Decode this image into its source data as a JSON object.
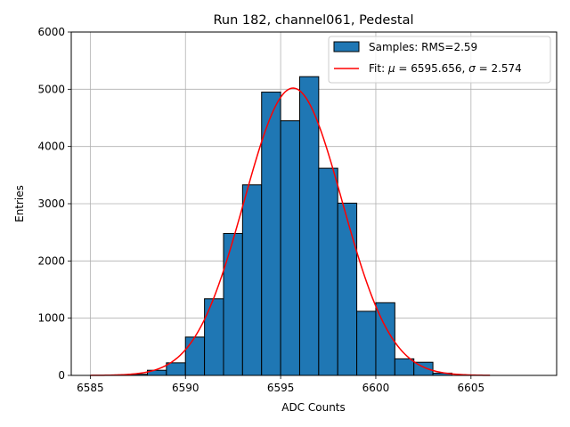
{
  "chart_data": {
    "type": "bar",
    "title": "Run 182, channel061, Pedestal",
    "xlabel": "ADC Counts",
    "ylabel": "Entries",
    "xlim": [
      6584,
      6609.5
    ],
    "ylim": [
      0,
      6000
    ],
    "xticks": [
      6585,
      6590,
      6595,
      6600,
      6605
    ],
    "yticks": [
      0,
      1000,
      2000,
      3000,
      4000,
      5000,
      6000
    ],
    "grid": true,
    "legend_position": "top-right",
    "bins": {
      "edges": [
        6587,
        6588,
        6589,
        6590,
        6591,
        6592,
        6593,
        6594,
        6595,
        6596,
        6597,
        6598,
        6599,
        6600,
        6601,
        6602,
        6603,
        6604
      ],
      "counts": [
        20,
        90,
        220,
        670,
        1340,
        2480,
        3330,
        4950,
        4450,
        5220,
        3620,
        3010,
        1120,
        1270,
        290,
        230,
        40
      ]
    },
    "fit": {
      "mu": 6595.656,
      "sigma": 2.574,
      "amplitude": 5020,
      "x_range": [
        6585,
        6606
      ]
    },
    "series": [
      {
        "name": "Samples: RMS=2.59",
        "type": "histogram",
        "color": "#1f77b4",
        "edgecolor": "#000000"
      },
      {
        "name_prefix": "Fit: ",
        "name_mu": "μ",
        "name_mid": " = 6595.656, ",
        "name_sigma": "σ",
        "name_suffix": " = 2.574",
        "type": "line",
        "color": "#ff0000"
      }
    ]
  }
}
